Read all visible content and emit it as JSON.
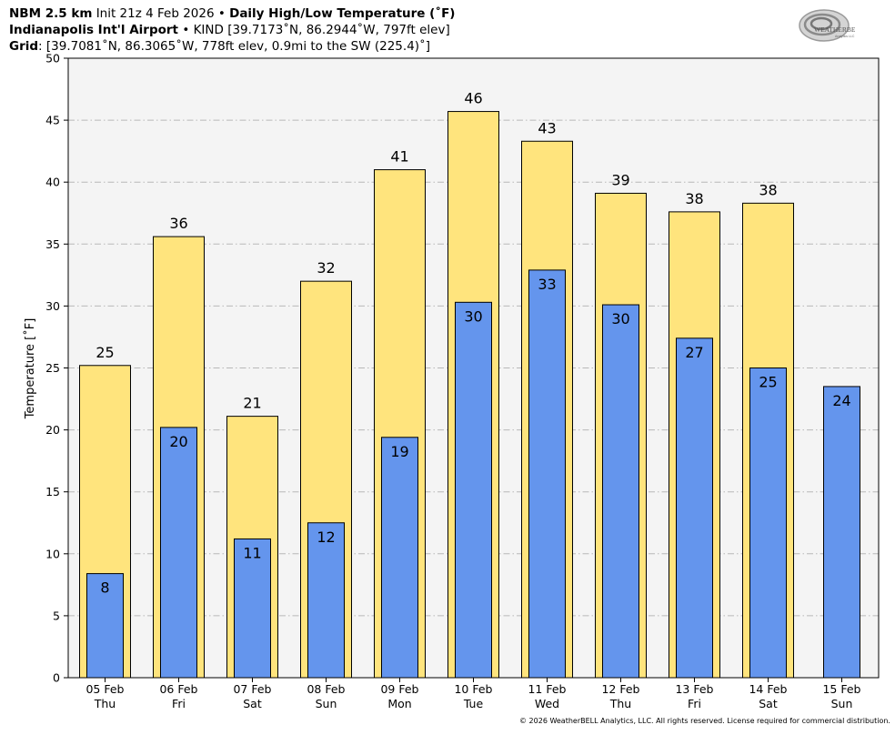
{
  "header": {
    "line1_model": "NBM 2.5 km",
    "line1_init": "Init 21z 4 Feb 2026",
    "line1_sep": "•",
    "line1_product": "Daily High/Low Temperature (˚F)",
    "line2_station": "Indianapolis Int'l Airport",
    "line2_sep": "•",
    "line2_detail": "KIND [39.7173˚N, 86.2944˚W, 797ft elev]",
    "line3_grid": "Grid",
    "line3_detail": ": [39.7081˚N, 86.3065˚W, 778ft elev, 0.9mi to the SW (225.4)˚]"
  },
  "logo": {
    "name": "weatherbell-logo",
    "text": "WEATHERBELL",
    "sub": "Analytics LLC"
  },
  "footer": {
    "copyright": "© 2026 WeatherBELL Analytics, LLC. All rights reserved. License required for commercial distribution."
  },
  "chart_data": {
    "type": "bar",
    "ylabel": "Temperature [˚F]",
    "xlabel": "",
    "ylim": [
      0,
      50
    ],
    "yticks": [
      0,
      5,
      10,
      15,
      20,
      25,
      30,
      35,
      40,
      45,
      50
    ],
    "grid": true,
    "categories": [
      {
        "date": "05 Feb",
        "day": "Thu"
      },
      {
        "date": "06 Feb",
        "day": "Fri"
      },
      {
        "date": "07 Feb",
        "day": "Sat"
      },
      {
        "date": "08 Feb",
        "day": "Sun"
      },
      {
        "date": "09 Feb",
        "day": "Mon"
      },
      {
        "date": "10 Feb",
        "day": "Tue"
      },
      {
        "date": "11 Feb",
        "day": "Wed"
      },
      {
        "date": "12 Feb",
        "day": "Thu"
      },
      {
        "date": "13 Feb",
        "day": "Fri"
      },
      {
        "date": "14 Feb",
        "day": "Sat"
      },
      {
        "date": "15 Feb",
        "day": "Sun"
      }
    ],
    "series": [
      {
        "role": "high",
        "color": "#ffe47d",
        "values": [
          25.2,
          35.6,
          21.1,
          32.0,
          41.0,
          45.7,
          43.3,
          39.1,
          37.6,
          38.3,
          null
        ],
        "labels": [
          "25",
          "36",
          "21",
          "32",
          "41",
          "46",
          "43",
          "39",
          "38",
          "38",
          null
        ]
      },
      {
        "role": "low",
        "color": "#6495ed",
        "values": [
          8.4,
          20.2,
          11.2,
          12.5,
          19.4,
          30.3,
          32.9,
          30.1,
          27.4,
          25.0,
          23.5
        ],
        "labels": [
          "8",
          "20",
          "11",
          "12",
          "19",
          "30",
          "33",
          "30",
          "27",
          "25",
          "24"
        ]
      }
    ]
  }
}
